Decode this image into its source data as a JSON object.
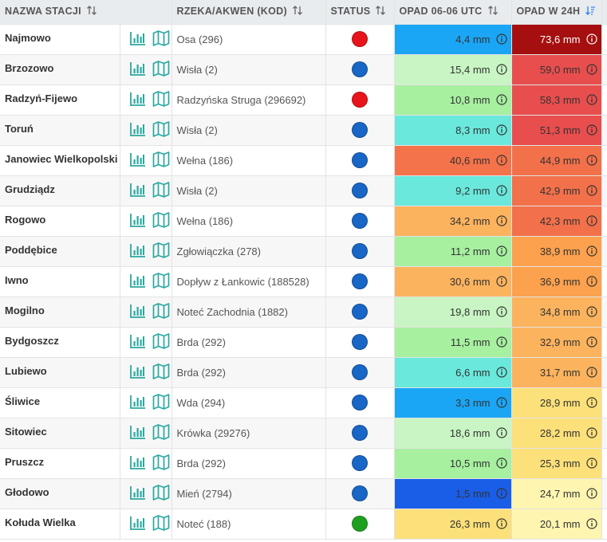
{
  "table": {
    "headers": {
      "station": "NAZWA STACJI",
      "river": "RZEKA/AKWEN (KOD)",
      "status": "STATUS",
      "precip_0606": "OPAD 06-06 UTC",
      "precip_24h": "OPAD W 24H"
    },
    "colors": {
      "status_red": "#e8141b",
      "status_blue": "#1866c5",
      "status_green": "#1ea01e",
      "icon_teal": "#2aa8a0",
      "sort_active": "#3b82f6"
    },
    "rows": [
      {
        "name": "Najmowo",
        "river": "Osa (296)",
        "status": "red",
        "p1": "4,4 mm",
        "p1_color": "#1ba6f5",
        "p2": "73,6 mm",
        "p2_color": "#a50f0f",
        "p2_text": "#ffffff"
      },
      {
        "name": "Brzozowo",
        "river": "Wisła (2)",
        "status": "blue",
        "p1": "15,4 mm",
        "p1_color": "#c8f5c3",
        "p2": "59,0 mm",
        "p2_color": "#e84e4e",
        "p2_text": "#333333"
      },
      {
        "name": "Radzyń-Fijewo",
        "river": "Radzyńska Struga (296692)",
        "status": "red",
        "p1": "10,8 mm",
        "p1_color": "#a6f0a0",
        "p2": "58,3 mm",
        "p2_color": "#e84e4e",
        "p2_text": "#333333"
      },
      {
        "name": "Toruń",
        "river": "Wisła (2)",
        "status": "blue",
        "p1": "8,3 mm",
        "p1_color": "#6ae8dc",
        "p2": "51,3 mm",
        "p2_color": "#e84e4e",
        "p2_text": "#333333"
      },
      {
        "name": "Janowiec Wielkopolski",
        "river": "Wełna (186)",
        "status": "blue",
        "p1": "40,6 mm",
        "p1_color": "#f5734a",
        "p2": "44,9 mm",
        "p2_color": "#f2704a",
        "p2_text": "#333333"
      },
      {
        "name": "Grudziądz",
        "river": "Wisła (2)",
        "status": "blue",
        "p1": "9,2 mm",
        "p1_color": "#6ae8dc",
        "p2": "42,9 mm",
        "p2_color": "#f2704a",
        "p2_text": "#333333"
      },
      {
        "name": "Rogowo",
        "river": "Wełna (186)",
        "status": "blue",
        "p1": "34,2 mm",
        "p1_color": "#fcb35e",
        "p2": "42,3 mm",
        "p2_color": "#f2704a",
        "p2_text": "#333333"
      },
      {
        "name": "Poddębice",
        "river": "Zgłowiączka (278)",
        "status": "blue",
        "p1": "11,2 mm",
        "p1_color": "#a6f0a0",
        "p2": "38,9 mm",
        "p2_color": "#fca14e",
        "p2_text": "#333333"
      },
      {
        "name": "Iwno",
        "river": "Dopływ z Łankowic (188528)",
        "status": "blue",
        "p1": "30,6 mm",
        "p1_color": "#fcb35e",
        "p2": "36,9 mm",
        "p2_color": "#fca14e",
        "p2_text": "#333333"
      },
      {
        "name": "Mogilno",
        "river": "Noteć Zachodnia (1882)",
        "status": "blue",
        "p1": "19,8 mm",
        "p1_color": "#c8f5c3",
        "p2": "34,8 mm",
        "p2_color": "#fcb35e",
        "p2_text": "#333333"
      },
      {
        "name": "Bydgoszcz",
        "river": "Brda (292)",
        "status": "blue",
        "p1": "11,5 mm",
        "p1_color": "#a6f0a0",
        "p2": "32,9 mm",
        "p2_color": "#fcb35e",
        "p2_text": "#333333"
      },
      {
        "name": "Lubiewo",
        "river": "Brda (292)",
        "status": "blue",
        "p1": "6,6 mm",
        "p1_color": "#6ae8dc",
        "p2": "31,7 mm",
        "p2_color": "#fcb35e",
        "p2_text": "#333333"
      },
      {
        "name": "Śliwice",
        "river": "Wda (294)",
        "status": "blue",
        "p1": "3,3 mm",
        "p1_color": "#1ba6f5",
        "p2": "28,9 mm",
        "p2_color": "#fce07a",
        "p2_text": "#333333"
      },
      {
        "name": "Sitowiec",
        "river": "Krówka (29276)",
        "status": "blue",
        "p1": "18,6 mm",
        "p1_color": "#c8f5c3",
        "p2": "28,2 mm",
        "p2_color": "#fce07a",
        "p2_text": "#333333"
      },
      {
        "name": "Pruszcz",
        "river": "Brda (292)",
        "status": "blue",
        "p1": "10,5 mm",
        "p1_color": "#a6f0a0",
        "p2": "25,3 mm",
        "p2_color": "#fce07a",
        "p2_text": "#333333"
      },
      {
        "name": "Głodowo",
        "river": "Mień (2794)",
        "status": "blue",
        "p1": "1,5 mm",
        "p1_color": "#1a5ee8",
        "p2": "24,7 mm",
        "p2_color": "#fdf5b0",
        "p2_text": "#333333"
      },
      {
        "name": "Kołuda Wielka",
        "river": "Noteć (188)",
        "status": "green",
        "p1": "26,3 mm",
        "p1_color": "#fce07a",
        "p2": "20,1 mm",
        "p2_color": "#fdf5b0",
        "p2_text": "#333333"
      }
    ]
  }
}
